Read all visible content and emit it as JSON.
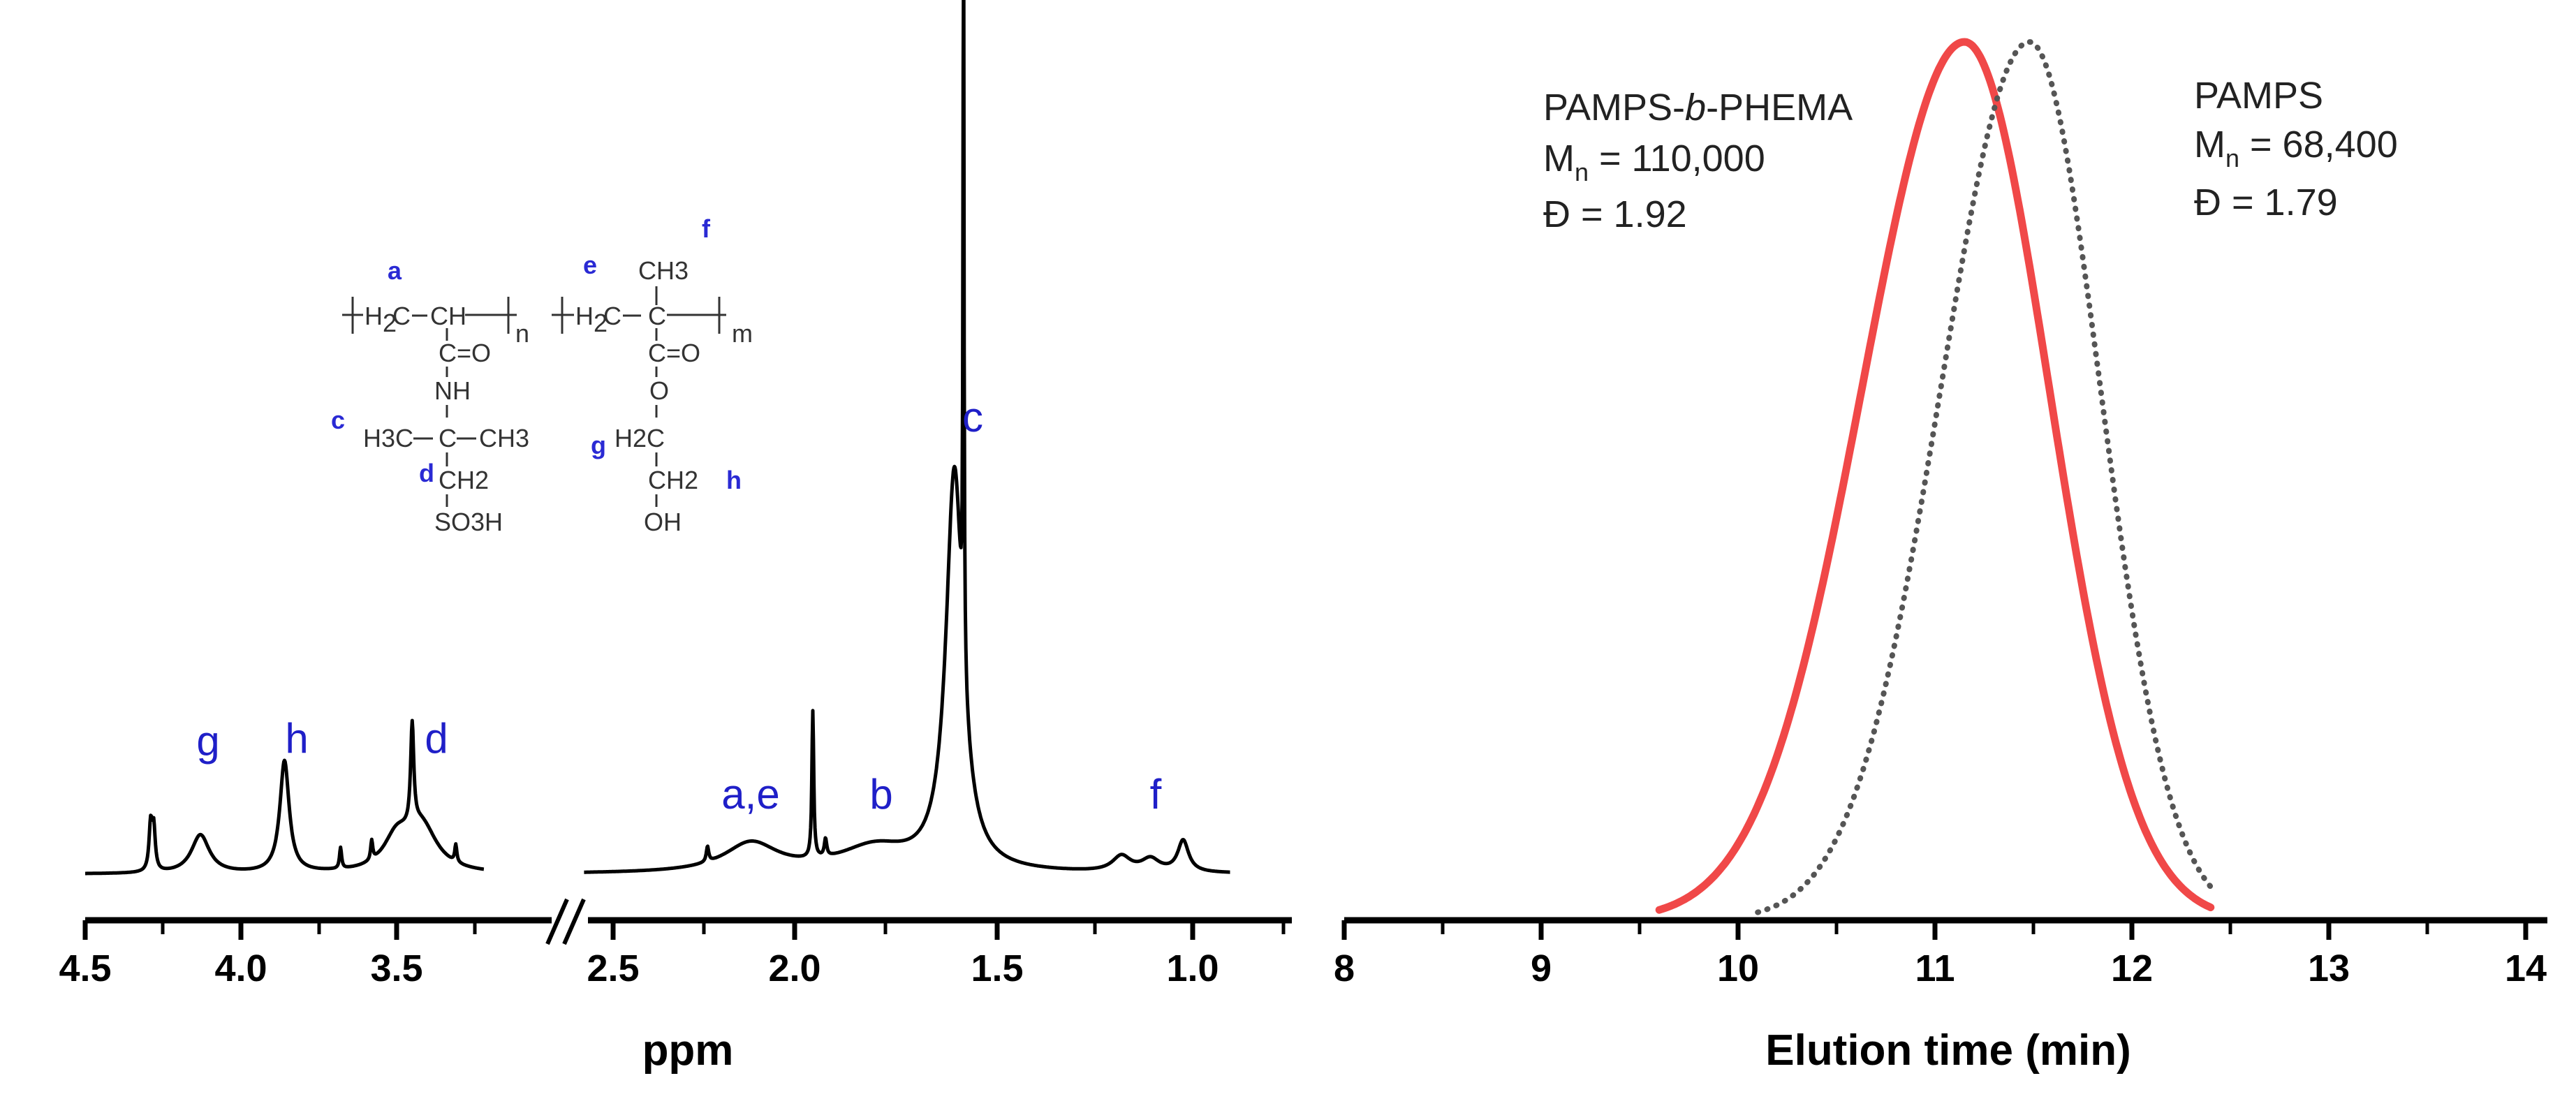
{
  "figure": "NMR spectrum and SEC traces",
  "chart_data": [
    {
      "type": "line",
      "name": "1H NMR spectrum",
      "xlabel": "ppm",
      "reversed_x": true,
      "axis_break": [
        2.7,
        3.3
      ],
      "xticks_left": [
        "4.5",
        "4.0",
        "3.5"
      ],
      "xticks_right": [
        "2.5",
        "2.0",
        "1.5",
        "1.0"
      ],
      "peak_labels": [
        "g",
        "h",
        "d",
        "a,e",
        "b",
        "c",
        "f"
      ],
      "peaks_ppm": {
        "g": 4.13,
        "h": 3.86,
        "d": 3.45,
        "a,e": 2.12,
        "b": 1.78,
        "c": 1.56,
        "f": 1.1
      }
    },
    {
      "type": "line",
      "name": "SEC traces",
      "xlabel": "Elution time (min)",
      "xlim": [
        8,
        14
      ],
      "xticks": [
        "8",
        "9",
        "10",
        "11",
        "12",
        "13",
        "14"
      ],
      "series": [
        {
          "name": "PAMPS-b-PHEMA",
          "peak_min": 11.15,
          "start_min": 9.6,
          "end_min": 12.4,
          "color": "#f04848",
          "style": "solid"
        },
        {
          "name": "PAMPS",
          "peak_min": 11.48,
          "start_min": 10.1,
          "end_min": 12.42,
          "color": "#555555",
          "style": "dotted"
        }
      ]
    }
  ],
  "nmr": {
    "xlabel": "ppm",
    "ticks_left": [
      "4.5",
      "4.0",
      "3.5"
    ],
    "ticks_right": [
      "2.5",
      "2.0",
      "1.5",
      "1.0"
    ],
    "peaks": {
      "g": "g",
      "h": "h",
      "d": "d",
      "ae": "a,e",
      "b": "b",
      "c": "c",
      "f": "f"
    }
  },
  "sec": {
    "xlabel": "Elution time (min)",
    "ticks": [
      "8",
      "9",
      "10",
      "11",
      "12",
      "13",
      "14"
    ],
    "block": {
      "pre": "PAMPS-",
      "italic": "b",
      "post": "-PHEMA",
      "mn_prefix": "M",
      "mn_sub": "n",
      "mn_value": " = 110,000",
      "dispersity": "Đ = 1.92"
    },
    "homo": {
      "name": "PAMPS",
      "mn_prefix": "M",
      "mn_sub": "n",
      "mn_value": " = 68,400",
      "dispersity": "Đ = 1.79"
    }
  },
  "structure": {
    "labels": {
      "a": "a",
      "c": "c",
      "d": "d",
      "e": "e",
      "f": "f",
      "g": "g",
      "h": "h"
    },
    "ch3_top": "CH3",
    "repeat_n": "n",
    "repeat_m": "m",
    "nh": "NH",
    "oh": "OH",
    "so3h": "SO3H",
    "ch2_d": "CH2",
    "ch2_h": "CH2",
    "h2c_g": "H2C",
    "h3c_left": "H3C",
    "ch3_right": "CH3"
  },
  "colors": {
    "nmr_trace": "#000000",
    "peak_label": "#1f1fc8",
    "block_trace": "#f04848",
    "homo_trace": "#555555"
  }
}
